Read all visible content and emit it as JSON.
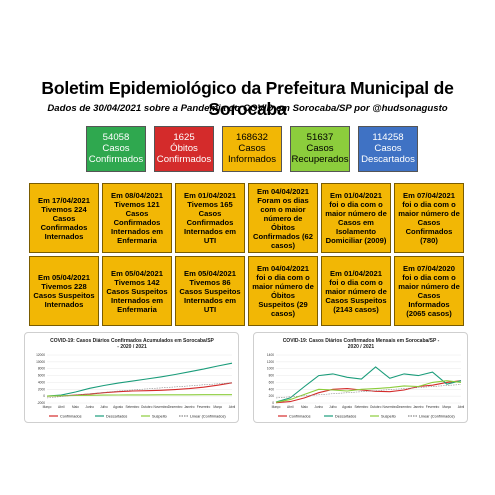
{
  "header": {
    "title": "Boletim Epidemiológico da Prefeitura Municipal de Sorocaba",
    "subtitle": "Dados de 30/04/2021 sobre a Pandemia do COVID em Sorocaba/SP por @hudsonagusto"
  },
  "stats": [
    {
      "value": "54058",
      "label": "Casos Confirmados",
      "color": "#2fa84f",
      "text_color": "#ffffff"
    },
    {
      "value": "1625",
      "label": "Óbitos Confirmados",
      "color": "#d42b2b",
      "text_color": "#ffffff"
    },
    {
      "value": "168632",
      "label": "Casos Informados",
      "color": "#f2b705",
      "text_color": "#000000"
    },
    {
      "value": "51637",
      "label": "Casos Recuperados",
      "color": "#8ccd3c",
      "text_color": "#000000"
    },
    {
      "value": "114258",
      "label": "Casos Descartados",
      "color": "#3f72c4",
      "text_color": "#ffffff"
    }
  ],
  "cards": [
    "Em 17/04/2021 Tivemos 224 Casos Confirmados Internados",
    "Em 08/04/2021 Tivemos 121 Casos Confirmados Internados em Enfermaria",
    "Em 01/04/2021 Tivemos 165 Casos Confirmados Internados em UTI",
    "Em 04/04/2021 Foram os dias com o maior número de Óbitos Confirmados (62 casos)",
    "Em 01/04/2021 foi o dia com o maior número de Casos em Isolamento Domiciliar (2009)",
    "Em 07/04/2021 foi o dia com o maior número de Casos Confirmados (780)",
    "Em 05/04/2021 Tivemos 228 Casos Suspeitos Internados",
    "Em 05/04/2021 Tivemos 142 Casos Suspeitos Internados em Enfermaria",
    "Em 05/04/2021 Tivemos 86 Casos Suspeitos Internados em UTI",
    "Em 04/04/2021 foi o dia com o maior número de Óbitos Suspeitos (29 casos)",
    "Em 01/04/2021 foi o dia com o maior número de Casos Suspeitos (2143 casos)",
    "Em 07/04/2020 foi o dia com o maior número de Casos Informados (2065 casos)"
  ],
  "chart_data": [
    {
      "type": "line",
      "title": "COVID-19: Casos Diários Confirmados Acumulados em Sorocaba/SP - 2020 / 2021",
      "categories": [
        "Março",
        "Abril",
        "Maio",
        "Junho",
        "Julho",
        "Agosto",
        "Setembro",
        "Outubro",
        "Novembro",
        "Dezembro",
        "Janeiro",
        "Fevereiro",
        "Março",
        "Abril"
      ],
      "ylim": [
        -2000,
        12000
      ],
      "yticks": [
        "12000",
        "10000",
        "8000",
        "6000",
        "4000",
        "2000",
        "0",
        "-2000"
      ],
      "grid": true,
      "legend_position": "bottom",
      "series": [
        {
          "name": "Confirmados",
          "color": "#d42b2b",
          "values": [
            0,
            50,
            300,
            600,
            1000,
            1300,
            1500,
            1600,
            1700,
            1900,
            2200,
            2600,
            3200,
            3900
          ]
        },
        {
          "name": "Descartados",
          "color": "#1a9c7a",
          "values": [
            0,
            300,
            1200,
            2300,
            3100,
            3800,
            4400,
            5000,
            5600,
            6300,
            7100,
            7900,
            8800,
            9600
          ]
        },
        {
          "name": "Suspeito",
          "color": "#8ccd3c",
          "values": [
            0,
            100,
            200,
            250,
            300,
            330,
            350,
            370,
            380,
            390,
            400,
            410,
            420,
            430
          ]
        },
        {
          "name": "Linear (Confirmados)",
          "color": "#8a8a8a",
          "dashed": true,
          "values": [
            -500,
            -100,
            300,
            700,
            1100,
            1500,
            1800,
            2100,
            2400,
            2700,
            3000,
            3300,
            3600,
            3900
          ]
        }
      ]
    },
    {
      "type": "line",
      "title": "COVID-19: Casos Diários Confirmados Mensais em Sorocaba/SP - 2020 / 2021",
      "categories": [
        "Março",
        "Abril",
        "Maio",
        "Junho",
        "Julho",
        "Agosto",
        "Setembro",
        "Outubro",
        "Novembro",
        "Dezembro",
        "Janeiro",
        "Fevereiro",
        "Março",
        "Abril"
      ],
      "ylim": [
        0,
        1400
      ],
      "yticks": [
        "1400",
        "1200",
        "1000",
        "800",
        "600",
        "400",
        "200",
        "0"
      ],
      "grid": true,
      "legend_position": "bottom",
      "series": [
        {
          "name": "Confirmados",
          "color": "#d42b2b",
          "values": [
            10,
            40,
            150,
            300,
            400,
            420,
            380,
            340,
            330,
            380,
            480,
            520,
            600,
            650
          ]
        },
        {
          "name": "Descartados",
          "color": "#1a9c7a",
          "values": [
            30,
            150,
            480,
            800,
            850,
            750,
            700,
            1050,
            720,
            850,
            800,
            900,
            550,
            650
          ]
        },
        {
          "name": "Suspeito",
          "color": "#8ccd3c",
          "values": [
            20,
            100,
            250,
            400,
            380,
            350,
            400,
            420,
            450,
            500,
            480,
            600,
            650,
            600
          ]
        },
        {
          "name": "Linear (Confirmados)",
          "color": "#8a8a8a",
          "dashed": true,
          "values": [
            150,
            180,
            210,
            240,
            270,
            300,
            330,
            360,
            390,
            420,
            450,
            480,
            510,
            540
          ]
        }
      ]
    }
  ]
}
